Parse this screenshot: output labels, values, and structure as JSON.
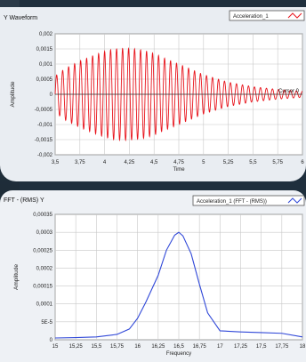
{
  "chart_data": [
    {
      "type": "line",
      "title": "Y Waveform",
      "xlabel": "Time",
      "ylabel": "Amplitude",
      "xlim": [
        3.5,
        6.0
      ],
      "ylim": [
        -0.002,
        0.002
      ],
      "x_ticks": [
        "3,5",
        "3,75",
        "4",
        "4,25",
        "4,5",
        "4,75",
        "5",
        "5,25",
        "5,5",
        "5,75",
        "6"
      ],
      "y_ticks": [
        "0,002",
        "0,0015",
        "0,001",
        "0,0005",
        "0",
        "-0,0005",
        "-0,001",
        "-0,0015",
        "-0,002"
      ],
      "grid": true,
      "legend": "top-right",
      "annotation": "Cursor 0",
      "series": [
        {
          "name": "Acceleration_1",
          "color": "#e8141c",
          "signal": "sinusoid",
          "frequency_hz": 16.5,
          "envelope": {
            "t": [
              3.5,
              3.6,
              3.75,
              3.9,
              4.0,
              4.1,
              4.2,
              4.3,
              4.4,
              4.5,
              4.6,
              4.75,
              5.0,
              5.25,
              5.5,
              5.75,
              6.0
            ],
            "a": [
              0.0006,
              0.00085,
              0.0011,
              0.0013,
              0.00142,
              0.0015,
              0.00152,
              0.0015,
              0.00145,
              0.00135,
              0.0012,
              0.001,
              0.00065,
              0.0004,
              0.00025,
              0.00016,
              0.0001
            ]
          }
        }
      ]
    },
    {
      "type": "line",
      "title": "FFT - (RMS) Y",
      "xlabel": "Frequency",
      "ylabel": "Amplitude",
      "xlim": [
        15,
        18
      ],
      "ylim": [
        0,
        0.00035
      ],
      "x_ticks": [
        "15",
        "15,25",
        "15,5",
        "15,75",
        "16",
        "16,25",
        "16,5",
        "16,75",
        "17",
        "17,25",
        "17,5",
        "17,75",
        "18"
      ],
      "y_ticks": [
        "0,00035",
        "0,0003",
        "0,00025",
        "0,0002",
        "0,00015",
        "0,0001",
        "5E-5",
        "0"
      ],
      "grid": true,
      "legend": "top-right",
      "series": [
        {
          "name": "Acceleration_1 (FFT - (RMS))",
          "color": "#3048d8",
          "x": [
            15,
            15.25,
            15.5,
            15.75,
            15.9,
            16.0,
            16.1,
            16.25,
            16.35,
            16.45,
            16.5,
            16.55,
            16.65,
            16.75,
            16.85,
            17.0,
            17.25,
            17.5,
            17.75,
            18
          ],
          "y": [
            5e-06,
            6e-06,
            8e-06,
            1.5e-05,
            3e-05,
            6e-05,
            0.000105,
            0.00018,
            0.00025,
            0.000292,
            0.0003,
            0.00029,
            0.00024,
            0.000155,
            7.5e-05,
            2.5e-05,
            2.2e-05,
            2e-05,
            1.8e-05,
            8e-06
          ]
        }
      ]
    }
  ]
}
